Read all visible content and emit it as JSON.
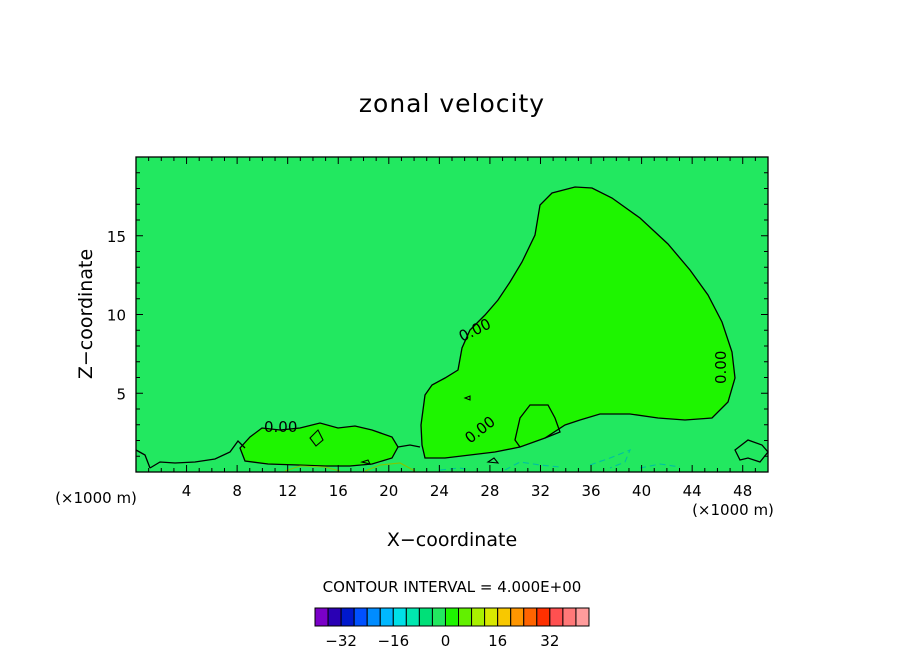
{
  "chart_data": {
    "type": "contour",
    "title": "zonal velocity",
    "xlabel": "X−coordinate",
    "ylabel": "Z−coordinate",
    "x_unit_left": "(×1000 m)",
    "x_unit_right": "(×1000 m)",
    "xlim": [
      0,
      50
    ],
    "ylim": [
      0,
      20
    ],
    "x_ticks": [
      4,
      8,
      12,
      16,
      20,
      24,
      28,
      32,
      36,
      40,
      44,
      48
    ],
    "y_ticks": [
      5,
      10,
      15
    ],
    "background_fill_color": "#22e860",
    "positive_region_color": "#1ef500",
    "contour_label": "0.00",
    "contour_interval_text": "CONTOUR INTERVAL = 4.000E+00",
    "contour_interval": 4.0,
    "colorbar": {
      "tick_labels": [
        "−32",
        "−16",
        "0",
        "16",
        "32"
      ],
      "tick_values": [
        -32,
        -16,
        0,
        16,
        32
      ],
      "colors": [
        "#7a00c8",
        "#2a00b4",
        "#0018cc",
        "#0050ff",
        "#008cff",
        "#00b8ff",
        "#00e0e8",
        "#00e8b0",
        "#00e078",
        "#22e860",
        "#1ef500",
        "#62f000",
        "#a8f000",
        "#d8e800",
        "#f8c800",
        "#ff9600",
        "#ff6400",
        "#ff3000",
        "#ff5050",
        "#ff7878",
        "#ff9c9c"
      ]
    },
    "grid": false
  }
}
